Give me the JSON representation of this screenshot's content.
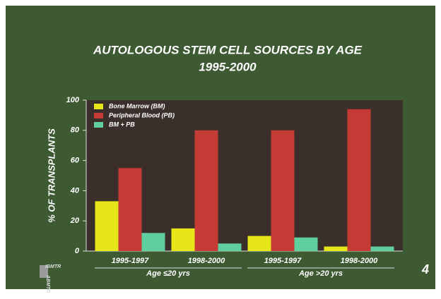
{
  "chart_data": {
    "type": "bar",
    "title": "AUTOLOGOUS STEM CELL SOURCES BY AGE",
    "subtitle": "1995-2000",
    "y_label": "% OF TRANSPLANTS",
    "categories": [
      "1995-1997",
      "1998-2000",
      "1995-1997",
      "1998-2000"
    ],
    "groups": [
      "Age ≤20 yrs",
      "Age >20 yrs"
    ],
    "series": [
      {
        "name": "Bone Marrow (BM)",
        "color": "#e6e619",
        "values": [
          33,
          15,
          10,
          3
        ]
      },
      {
        "name": "Peripheral Blood (PB)",
        "color": "#c33b34",
        "values": [
          55,
          80,
          80,
          94
        ]
      },
      {
        "name": "BM + PB",
        "color": "#5fcf9f",
        "values": [
          12,
          5,
          9,
          3
        ]
      }
    ],
    "ylim": [
      0,
      100
    ],
    "yticks": [
      0,
      20,
      40,
      60,
      80,
      100
    ],
    "legend": "upper-left",
    "page_number": "4",
    "logo": [
      "IBMTR",
      "ABMTR"
    ]
  }
}
